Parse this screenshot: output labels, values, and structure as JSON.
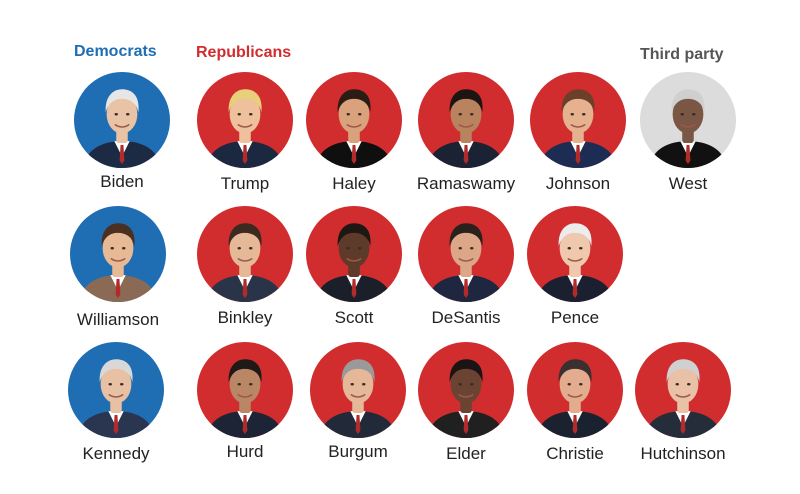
{
  "headers": {
    "democrats": "Democrats",
    "republicans": "Republicans",
    "third_party": "Third party"
  },
  "colors": {
    "democrat": "#1f6db3",
    "republican": "#d12d2f",
    "third_party": "#dcdcdc",
    "third_party_header": "#555555"
  },
  "candidates": [
    {
      "name": "Biden",
      "party": "democrat",
      "portrait": "person-portrait"
    },
    {
      "name": "Trump",
      "party": "republican",
      "portrait": "person-portrait"
    },
    {
      "name": "Haley",
      "party": "republican",
      "portrait": "person-portrait"
    },
    {
      "name": "Ramaswamy",
      "party": "republican",
      "portrait": "person-portrait"
    },
    {
      "name": "Johnson",
      "party": "republican",
      "portrait": "person-portrait"
    },
    {
      "name": "West",
      "party": "third_party",
      "portrait": "person-portrait"
    },
    {
      "name": "Williamson",
      "party": "democrat",
      "portrait": "person-portrait"
    },
    {
      "name": "Binkley",
      "party": "republican",
      "portrait": "person-portrait"
    },
    {
      "name": "Scott",
      "party": "republican",
      "portrait": "person-portrait"
    },
    {
      "name": "DeSantis",
      "party": "republican",
      "portrait": "person-portrait"
    },
    {
      "name": "Pence",
      "party": "republican",
      "portrait": "person-portrait"
    },
    {
      "name": "Kennedy",
      "party": "democrat",
      "portrait": "person-portrait"
    },
    {
      "name": "Hurd",
      "party": "republican",
      "portrait": "person-portrait"
    },
    {
      "name": "Burgum",
      "party": "republican",
      "portrait": "person-portrait"
    },
    {
      "name": "Elder",
      "party": "republican",
      "portrait": "person-portrait"
    },
    {
      "name": "Christie",
      "party": "republican",
      "portrait": "person-portrait"
    },
    {
      "name": "Hutchinson",
      "party": "republican",
      "portrait": "person-portrait"
    }
  ]
}
